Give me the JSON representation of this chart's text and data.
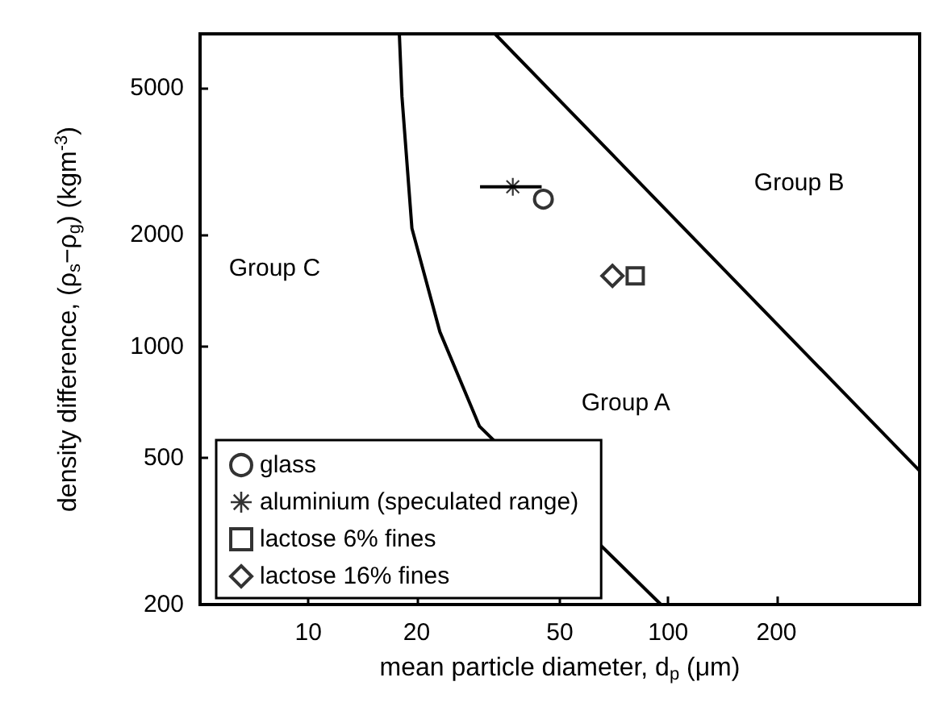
{
  "chart_data": {
    "type": "scatter",
    "xlabel": "mean particle diameter, d$_{p}$ (μm)",
    "ylabel": "density difference, (ρ$_{s}$−ρ$_{g}$) (kgm$^{-3}$)",
    "log": "xy",
    "xlim": [
      5,
      500
    ],
    "ylim": [
      200,
      7000
    ],
    "xticks": [
      10,
      20,
      50,
      100,
      200
    ],
    "yticks": [
      200,
      500,
      1000,
      2000,
      5000
    ],
    "grid": false,
    "legend": "bottom left",
    "series": [
      {
        "name": "glass",
        "color": "#000000",
        "marker": "circle",
        "x": [
          45
        ],
        "values": [
          2500
        ]
      },
      {
        "name": "aluminium (speculated range)",
        "color": "#000000",
        "marker": "star",
        "x": [
          37
        ],
        "values": [
          2700
        ],
        "xerrors": [
          [
            30,
            44.5
          ]
        ]
      },
      {
        "name": "lactose 6% fines",
        "color": "#000000",
        "marker": "square",
        "x": [
          81
        ],
        "values": [
          1550
        ]
      },
      {
        "name": "lactose 16% fines",
        "color": "#000000",
        "marker": "diamond",
        "x": [
          70
        ],
        "values": [
          1550
        ]
      },
      {
        "type": "line",
        "color": "#000000",
        "marker": "none",
        "line_style": "solid",
        "x": [
          17.9,
          18.2,
          19.4,
          23.2,
          29.9,
          95.5
        ],
        "values": [
          7000,
          4740,
          2085,
          1094,
          607,
          200
        ]
      },
      {
        "type": "line",
        "color": "#000000",
        "marker": "none",
        "line_style": "solid",
        "x": [
          33,
          500
        ],
        "values": [
          7000,
          460
        ]
      }
    ],
    "annotations": [
      "Group C",
      "Group A",
      "Group B"
    ]
  }
}
